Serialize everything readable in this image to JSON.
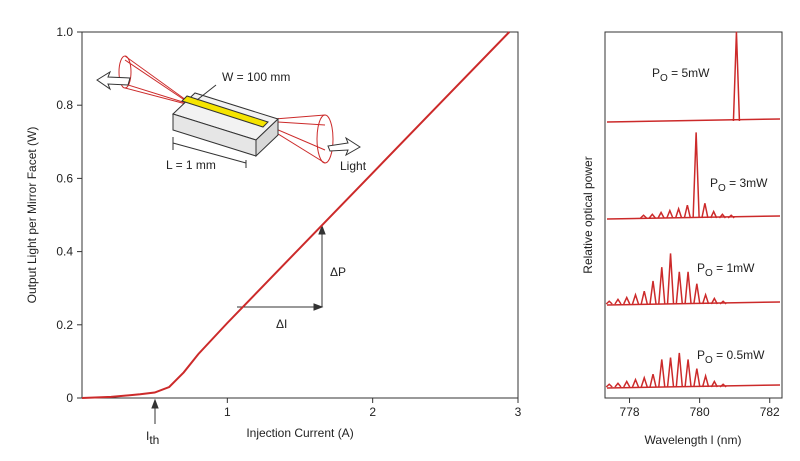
{
  "chart_data": [
    {
      "type": "line",
      "x": [
        0,
        0.2,
        0.4,
        0.5,
        0.6,
        0.7,
        0.8,
        1.0,
        1.5,
        2.0,
        2.5,
        2.94
      ],
      "values": [
        0,
        0.003,
        0.01,
        0.015,
        0.03,
        0.07,
        0.12,
        0.205,
        0.41,
        0.615,
        0.82,
        1.0
      ],
      "color": "#cc2a2a",
      "xlim": [
        0,
        3
      ],
      "xticks": [
        1,
        2,
        3
      ],
      "ylim": [
        0,
        1
      ],
      "yticks": [
        0,
        0.2,
        0.4,
        0.6,
        0.8,
        {
          "value": 1,
          "label": "1.0"
        }
      ],
      "xlabel": "Injection Current (A)",
      "ylabel": "Output Light per Mirror Facet (W)",
      "threshold_label": {
        "main": "I",
        "sub": "th"
      },
      "delta_p": "ΔP",
      "delta_i": "ΔI",
      "inset_labels": [
        "W = 100 mm",
        "L = 1 mm",
        "Light"
      ]
    },
    {
      "type": "spectra",
      "xlim": [
        777.3,
        782.35
      ],
      "xticks": [
        778,
        780,
        782
      ],
      "ylim": [
        0,
        1
      ],
      "xlabel": "Wavelength l (nm)",
      "ylabel": "Relative optical power",
      "series": [
        {
          "name": {
            "main": "P",
            "sub": "O",
            "rest": " = 5mW"
          },
          "color": "#cc2a2a",
          "x": [
            781.05
          ],
          "values": [
            0.97
          ]
        },
        {
          "name": {
            "main": "P",
            "sub": "O",
            "rest": " = 3mW"
          },
          "color": "#cc2a2a",
          "x": [
            778.4,
            778.65,
            778.9,
            779.15,
            779.4,
            779.65,
            779.9,
            780.15,
            780.4,
            780.65,
            780.9
          ],
          "values": [
            0.03,
            0.04,
            0.06,
            0.08,
            0.1,
            0.14,
            0.93,
            0.16,
            0.07,
            0.04,
            0.03
          ]
        },
        {
          "name": {
            "main": "P",
            "sub": "O",
            "rest": " = 1mW"
          },
          "color": "#cc2a2a",
          "x": [
            777.42,
            777.67,
            777.92,
            778.17,
            778.42,
            778.67,
            778.92,
            779.17,
            779.42,
            779.67,
            779.92,
            780.17,
            780.42,
            780.67
          ],
          "values": [
            0.03,
            0.05,
            0.07,
            0.1,
            0.14,
            0.25,
            0.4,
            0.55,
            0.35,
            0.35,
            0.22,
            0.1,
            0.06,
            0.03
          ]
        },
        {
          "name": {
            "main": "P",
            "sub": "O",
            "rest": " = 0.5mW"
          },
          "color": "#cc2a2a",
          "x": [
            777.42,
            777.67,
            777.92,
            778.17,
            778.42,
            778.67,
            778.92,
            779.17,
            779.42,
            779.67,
            779.92,
            780.17,
            780.42,
            780.67
          ],
          "values": [
            0.03,
            0.04,
            0.06,
            0.08,
            0.1,
            0.14,
            0.3,
            0.32,
            0.37,
            0.3,
            0.2,
            0.12,
            0.06,
            0.03
          ]
        }
      ]
    }
  ]
}
